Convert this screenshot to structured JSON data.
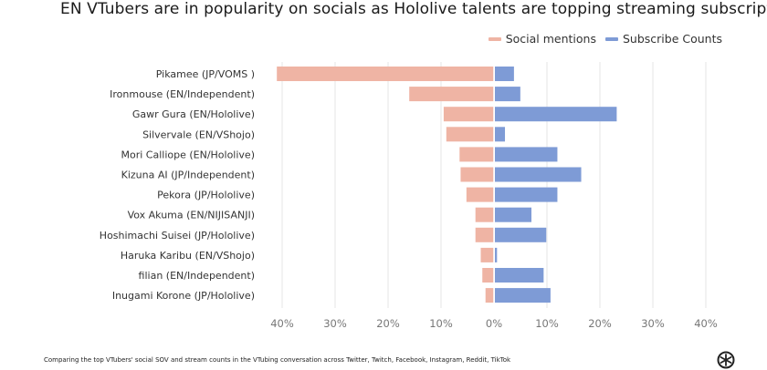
{
  "colors": {
    "social_mentions": "#efb4a4",
    "subscribe_counts": "#7e9bd6",
    "grid": "#e6e6e6",
    "label": "#333333",
    "tick": "#777777"
  },
  "footnote": "Comparing the top VTubers' social SOV and stream counts in the VTubing conversation across Twitter, Twitch, Facebook, Instagram, Reddit, TikTok",
  "logo_icon": "brand-logo-icon",
  "chart_data": {
    "type": "bar",
    "orientation": "horizontal-diverging",
    "title": "EN VTubers are in popularity on socials as Hololive talents are topping streaming subscriptions",
    "legend_position": "top-right",
    "categories": [
      "Pikamee (JP/VOMS )",
      "Ironmouse (EN/Independent)",
      "Gawr Gura (EN/Hololive)",
      "Silvervale (EN/VShojo)",
      "Mori Calliope (EN/Hololive)",
      "Kizuna AI (JP/Independent)",
      "Pekora (JP/Hololive)",
      "Vox Akuma (EN/NIJISANJI)",
      "Hoshimachi Suisei (JP/Hololive)",
      "Haruka Karibu (EN/VShojo)",
      "filian (EN/Independent)",
      "Inugami Korone (JP/Hololive)"
    ],
    "series": [
      {
        "name": "Social mentions",
        "direction": "left",
        "values": [
          41,
          16,
          9.5,
          9,
          6.5,
          6.3,
          5.2,
          3.5,
          3.5,
          2.5,
          2.2,
          1.6
        ]
      },
      {
        "name": "Subscribe Counts",
        "direction": "right",
        "values": [
          3.6,
          4.8,
          23,
          1.9,
          11.8,
          16.3,
          11.8,
          6.9,
          9.7,
          0.4,
          9.2,
          10.5
        ]
      }
    ],
    "xlim": [
      -40,
      40
    ],
    "xticks": [
      "40%",
      "30%",
      "20%",
      "10%",
      "0%",
      "10%",
      "20%",
      "30%",
      "40%"
    ],
    "grid": true
  }
}
